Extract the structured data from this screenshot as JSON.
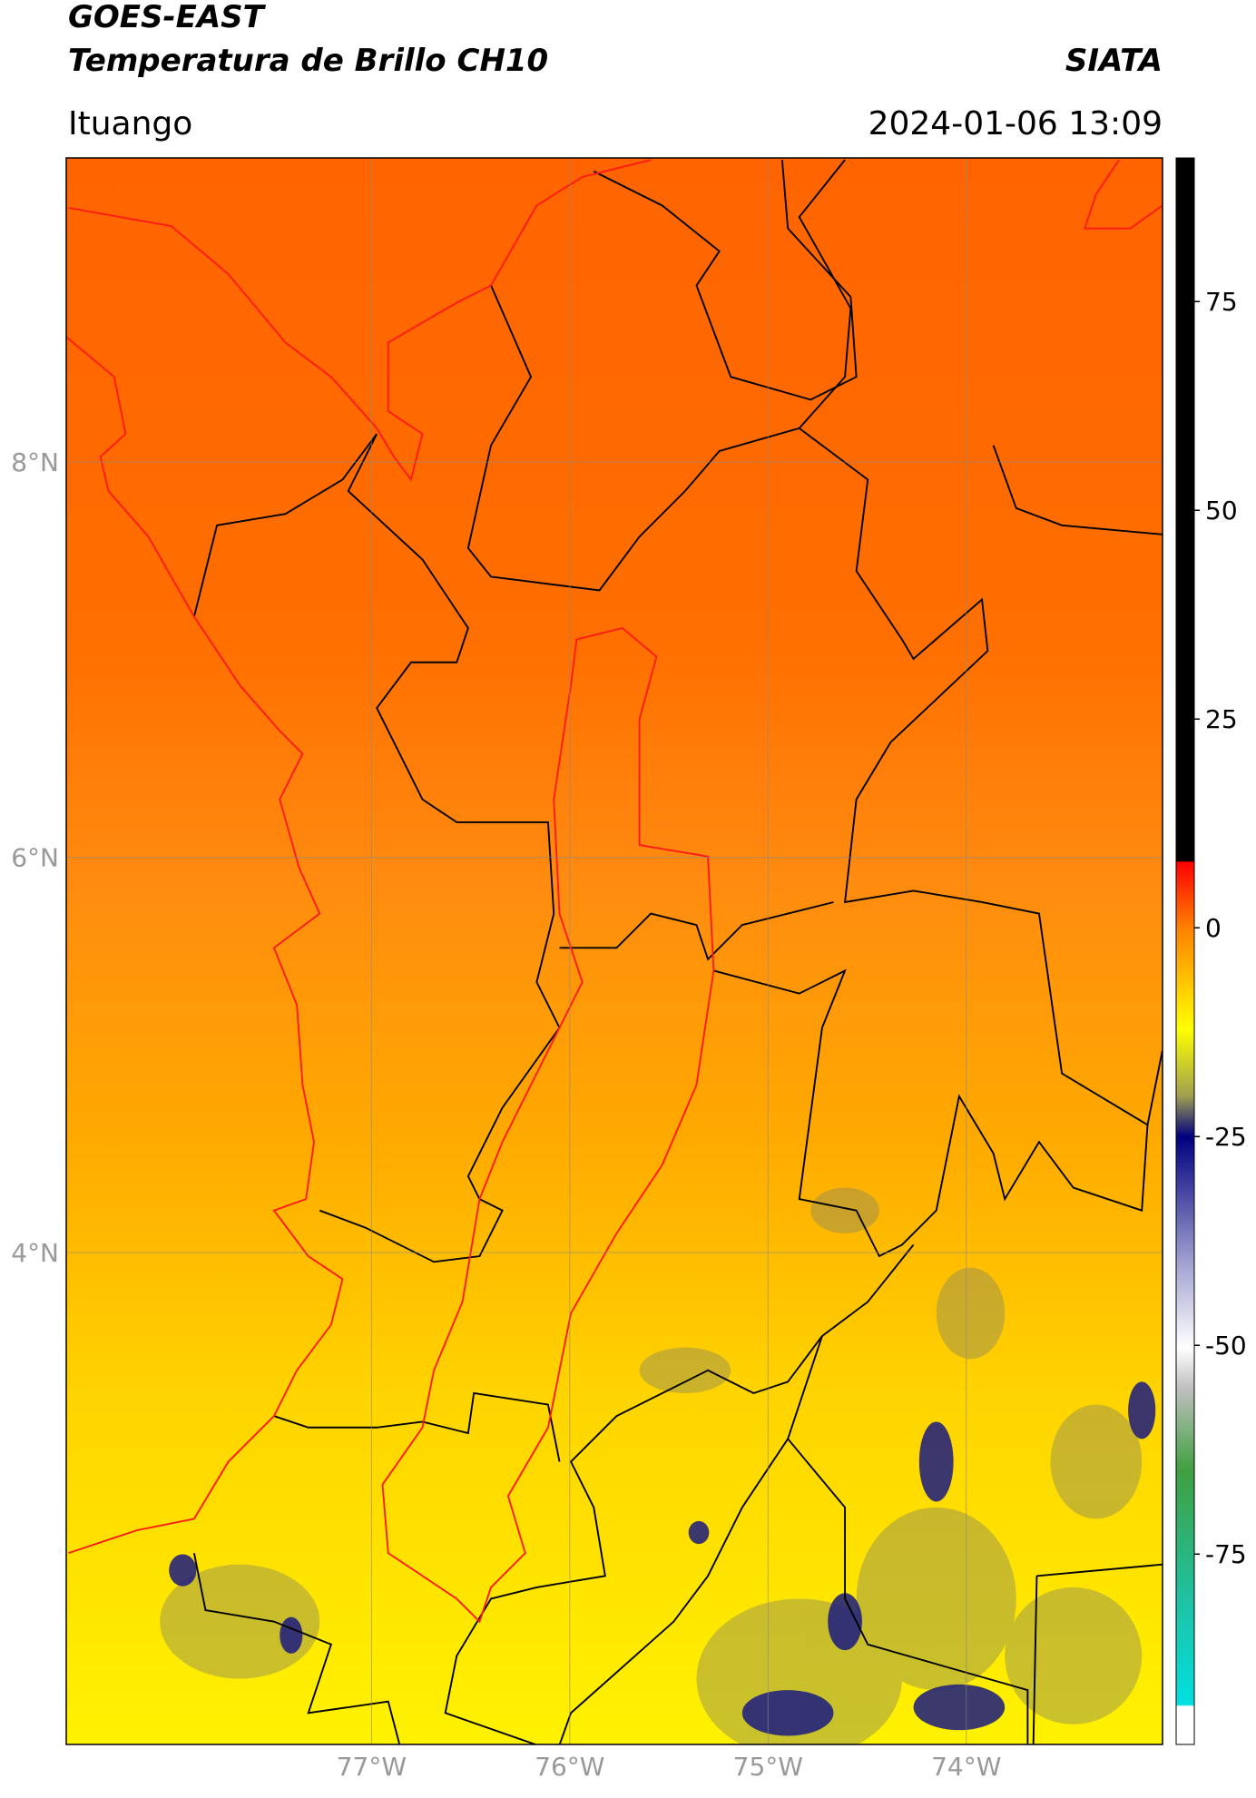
{
  "header": {
    "title": "GOES-EAST",
    "subtitle": "Temperatura de Brillo CH10",
    "source": "SIATA",
    "location": "Ituango",
    "datetime": "2024-01-06 13:09"
  },
  "map": {
    "lon_range": [
      -78.54,
      -73.01
    ],
    "lat_range": [
      1.51,
      9.54
    ],
    "grid": true,
    "lat_ticks": [
      {
        "value": 8,
        "label": "8°N"
      },
      {
        "value": 6,
        "label": "6°N"
      },
      {
        "value": 4,
        "label": "4°N"
      }
    ],
    "lon_ticks": [
      {
        "value": -77,
        "label": "77°W"
      },
      {
        "value": -76,
        "label": "76°W"
      },
      {
        "value": -75,
        "label": "75°W"
      },
      {
        "value": -74,
        "label": "74°W"
      }
    ]
  },
  "colorbar": {
    "range": [
      -97.8,
      92.2
    ],
    "ticks": [
      75,
      50,
      25,
      0,
      -25,
      -50,
      -75
    ]
  }
}
